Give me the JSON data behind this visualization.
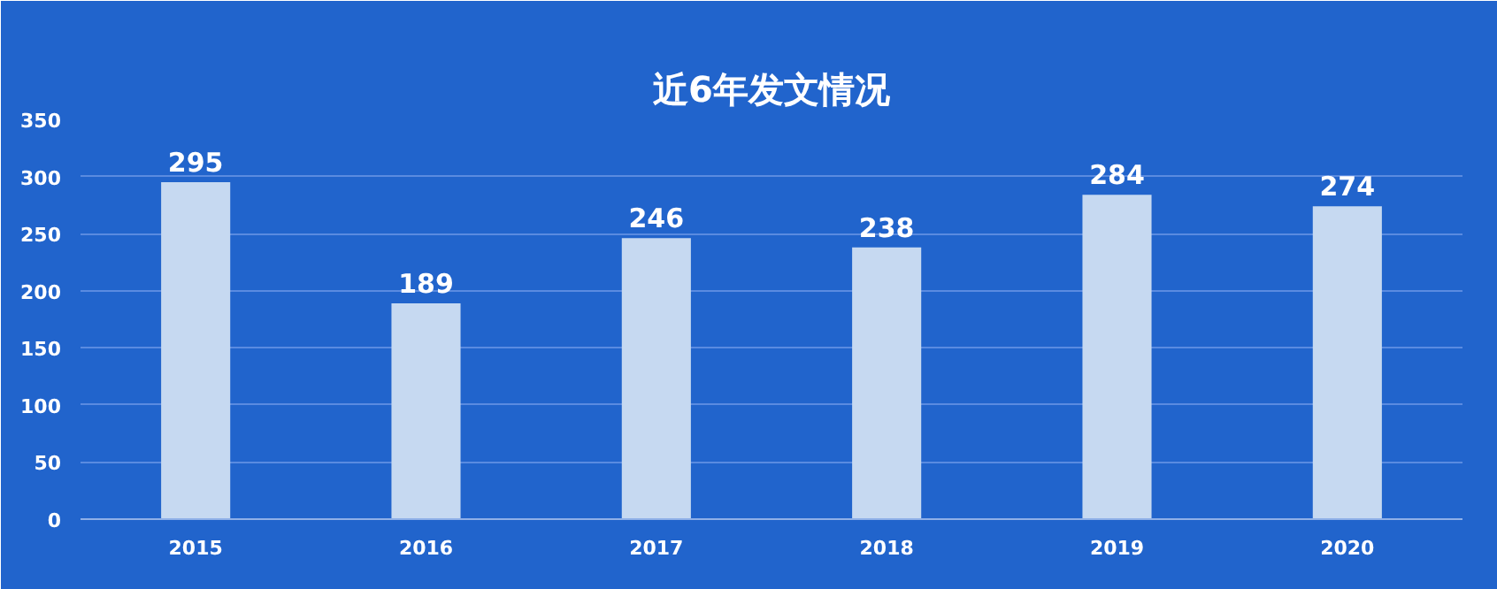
{
  "chart_data": {
    "type": "bar",
    "title": "近6年发文情况",
    "categories": [
      "2015",
      "2016",
      "2017",
      "2018",
      "2019",
      "2020"
    ],
    "values": [
      295,
      189,
      246,
      238,
      284,
      274
    ],
    "color": "#c6d9f1",
    "ylim": [
      0,
      350
    ],
    "yticks": [
      0,
      50,
      100,
      150,
      200,
      250,
      300,
      350
    ],
    "grid": "y",
    "data_labels": true
  }
}
